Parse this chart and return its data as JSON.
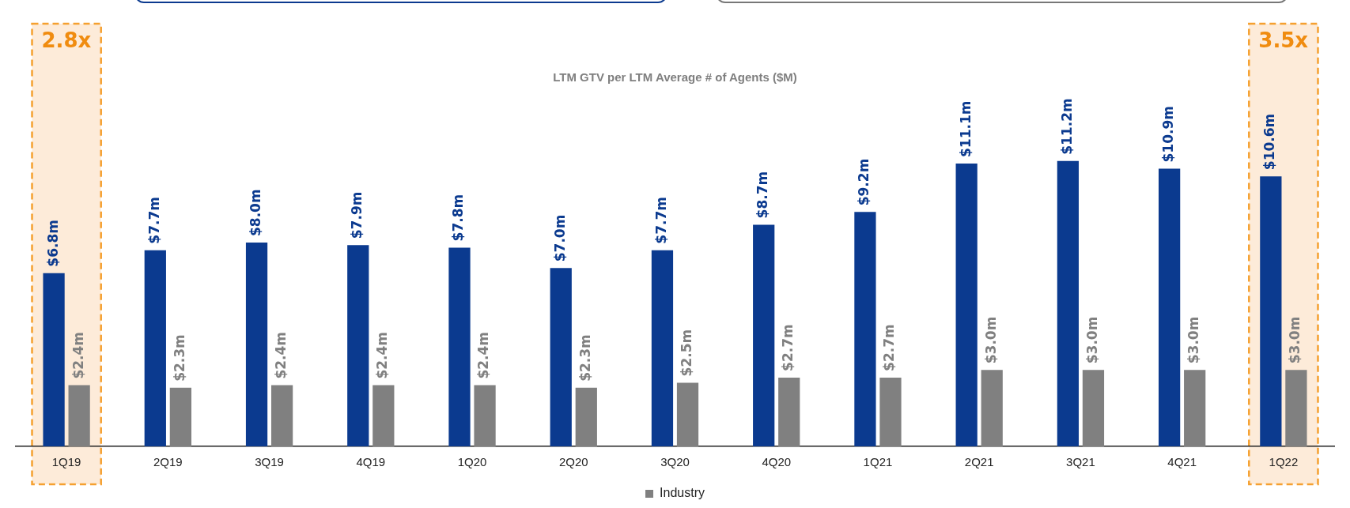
{
  "chart_data": {
    "type": "bar",
    "title": "LTM GTV per LTM Average # of Agents ($M)",
    "categories": [
      "1Q19",
      "2Q19",
      "3Q19",
      "4Q19",
      "1Q20",
      "2Q20",
      "3Q20",
      "4Q20",
      "1Q21",
      "2Q21",
      "3Q21",
      "4Q21",
      "1Q22"
    ],
    "series": [
      {
        "color": "#0b3a8f",
        "values": [
          6.8,
          7.7,
          8.0,
          7.9,
          7.8,
          7.0,
          7.7,
          8.7,
          9.2,
          11.1,
          11.2,
          10.9,
          10.6
        ],
        "value_labels": [
          "$6.8m",
          "$7.7m",
          "$8.0m",
          "$7.9m",
          "$7.8m",
          "$7.0m",
          "$7.7m",
          "$8.7m",
          "$9.2m",
          "$11.1m",
          "$11.2m",
          "$10.9m",
          "$10.6m"
        ]
      },
      {
        "name": "Industry",
        "color": "#808080",
        "values": [
          2.4,
          2.3,
          2.4,
          2.4,
          2.4,
          2.3,
          2.5,
          2.7,
          2.7,
          3.0,
          3.0,
          3.0,
          3.0
        ],
        "value_labels": [
          "$2.4m",
          "$2.3m",
          "$2.4m",
          "$2.4m",
          "$2.4m",
          "$2.3m",
          "$2.5m",
          "$2.7m",
          "$2.7m",
          "$3.0m",
          "$3.0m",
          "$3.0m",
          "$3.0m"
        ]
      }
    ],
    "bands": [
      {
        "axis": "x",
        "from": "1Q19",
        "to": "1Q19",
        "label": "2.8x",
        "color": "#fdebd9"
      },
      {
        "axis": "x",
        "from": "1Q22",
        "to": "1Q22",
        "label": "3.5x",
        "color": "#fdebd9"
      }
    ],
    "legend": "bottom",
    "grid": false
  }
}
